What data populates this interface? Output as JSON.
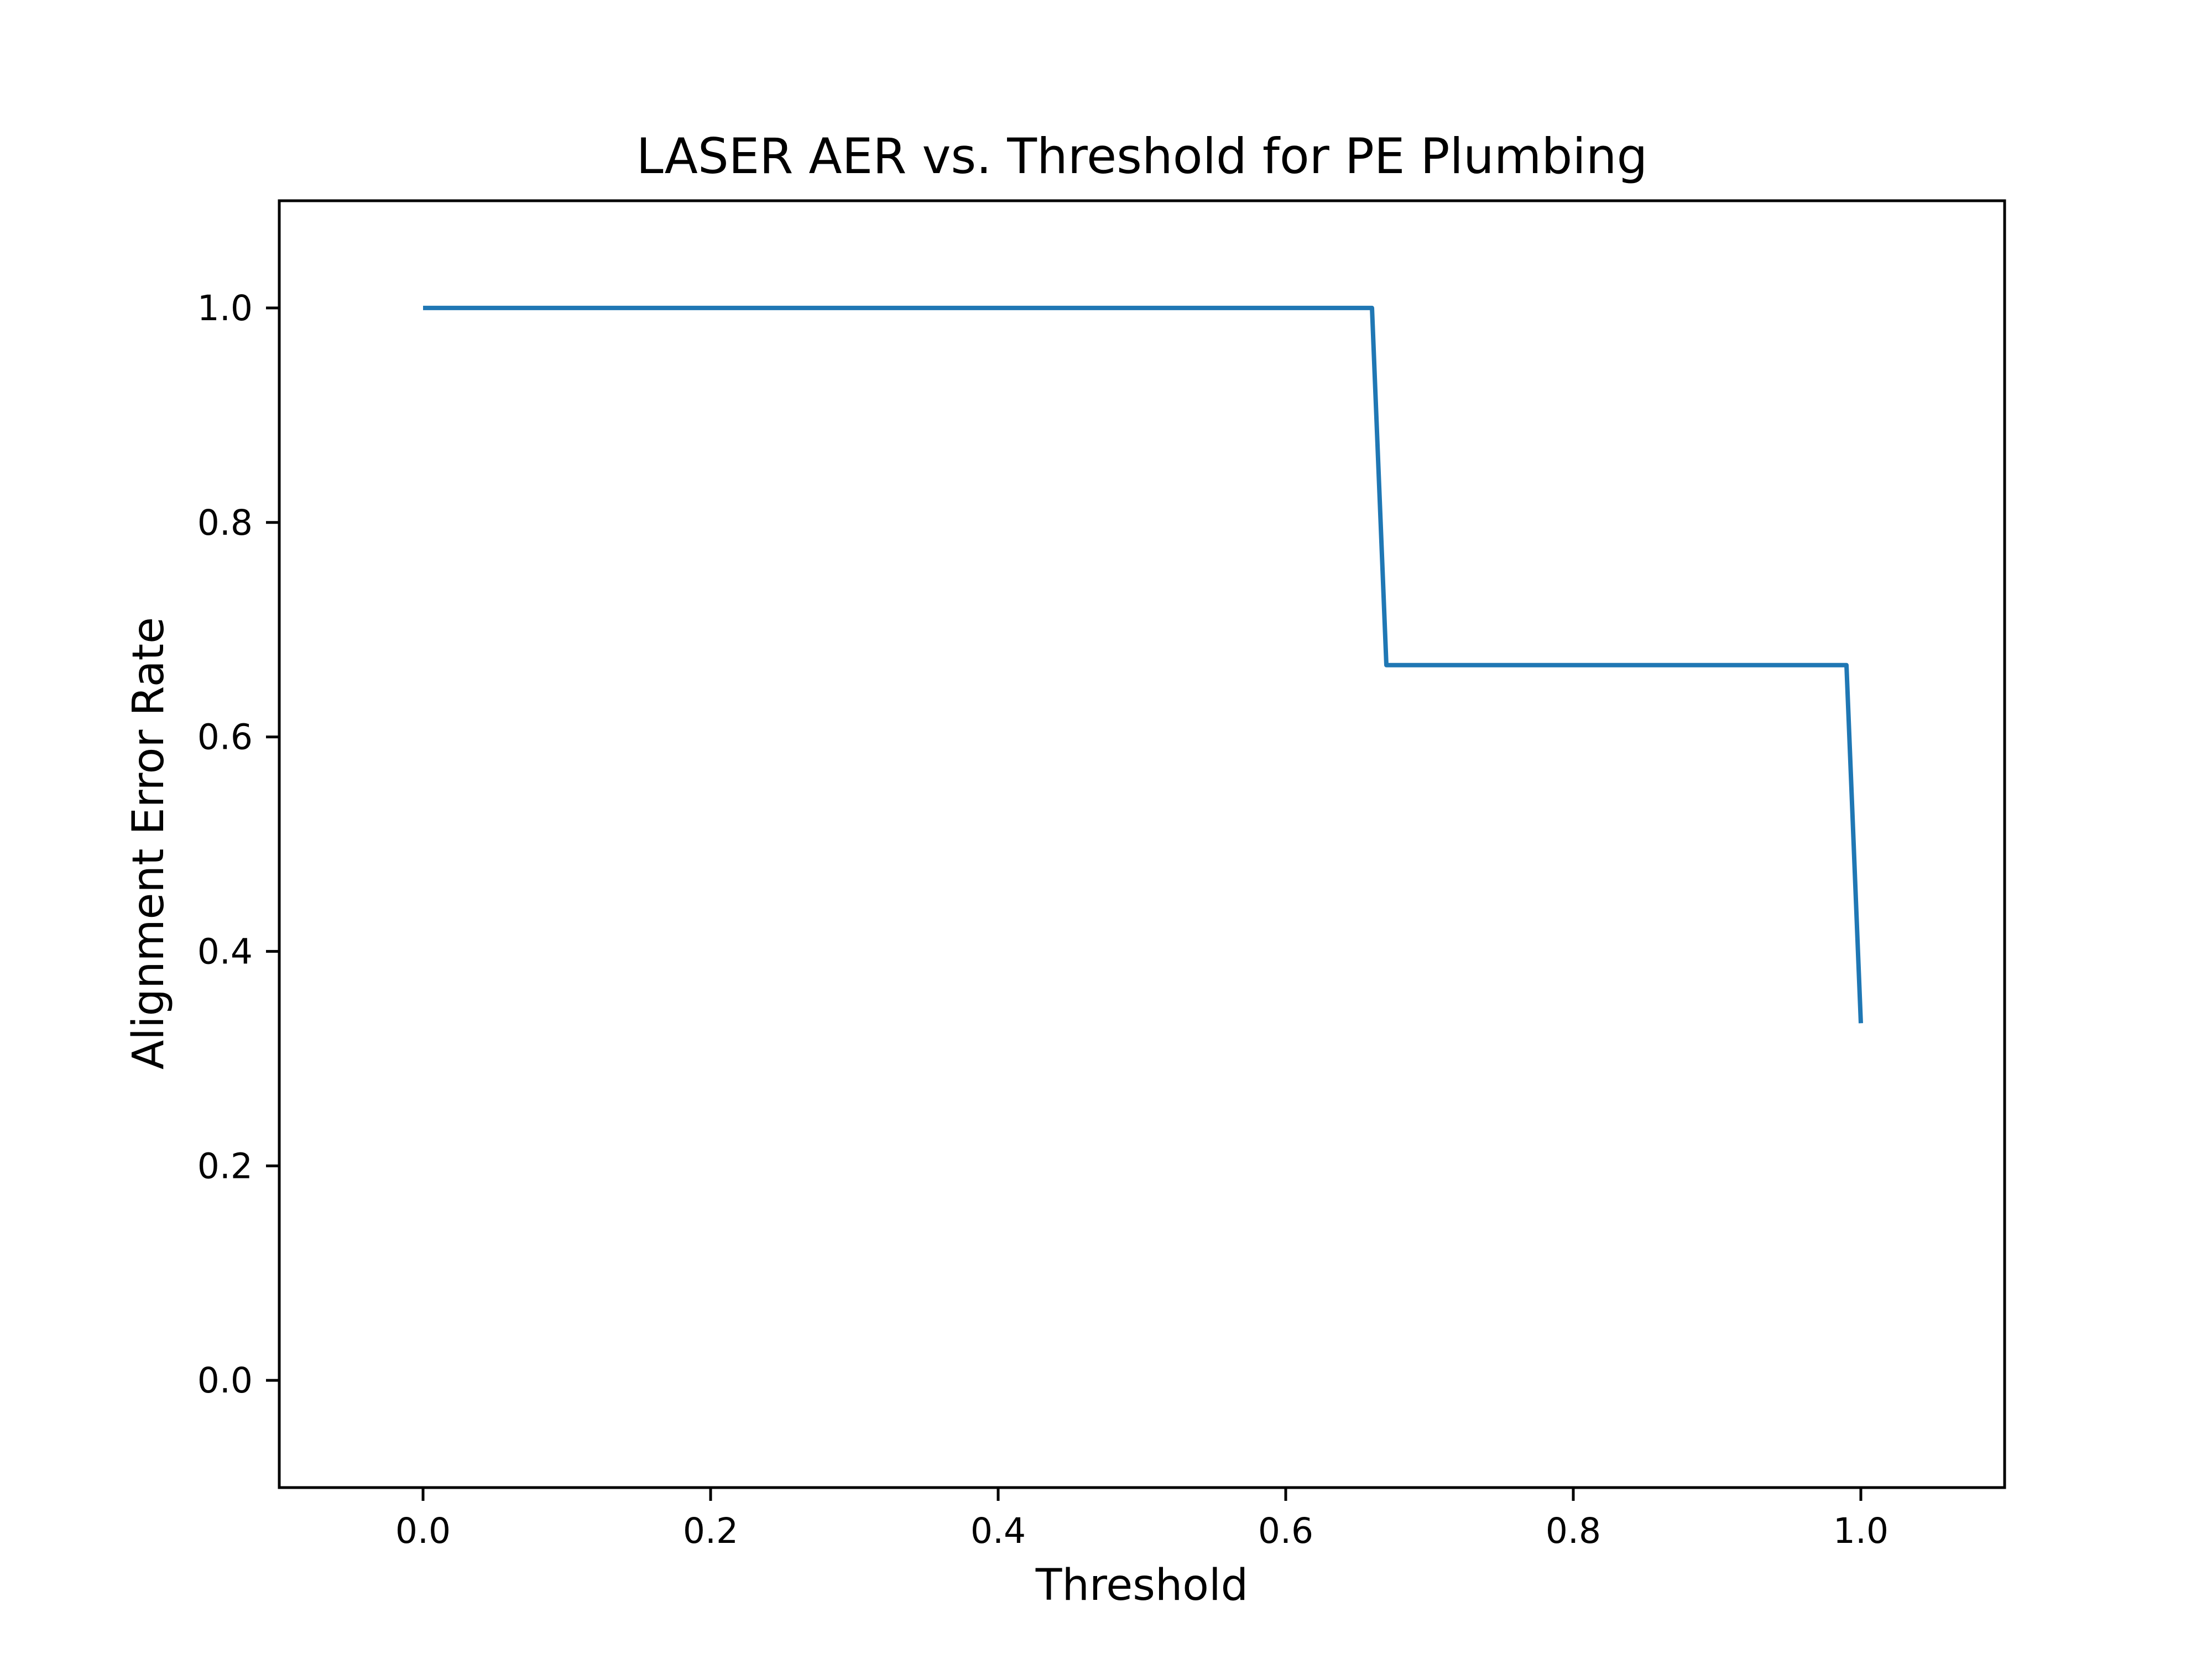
{
  "chart_data": {
    "type": "line",
    "title": "LASER AER vs. Threshold for PE Plumbing",
    "xlabel": "Threshold",
    "ylabel": "Alignment Error Rate",
    "xlim": [
      -0.1,
      1.1
    ],
    "ylim": [
      -0.1,
      1.1
    ],
    "x_ticks": [
      "0.0",
      "0.2",
      "0.4",
      "0.6",
      "0.8",
      "1.0"
    ],
    "y_ticks": [
      "0.0",
      "0.2",
      "0.4",
      "0.6",
      "0.8",
      "1.0"
    ],
    "grid": false,
    "legend": "none",
    "series": [
      {
        "color": "#1f77b4",
        "x": [
          0.0,
          0.66,
          0.67,
          0.99,
          1.0
        ],
        "y": [
          1.0,
          1.0,
          0.667,
          0.667,
          0.333
        ]
      }
    ]
  }
}
